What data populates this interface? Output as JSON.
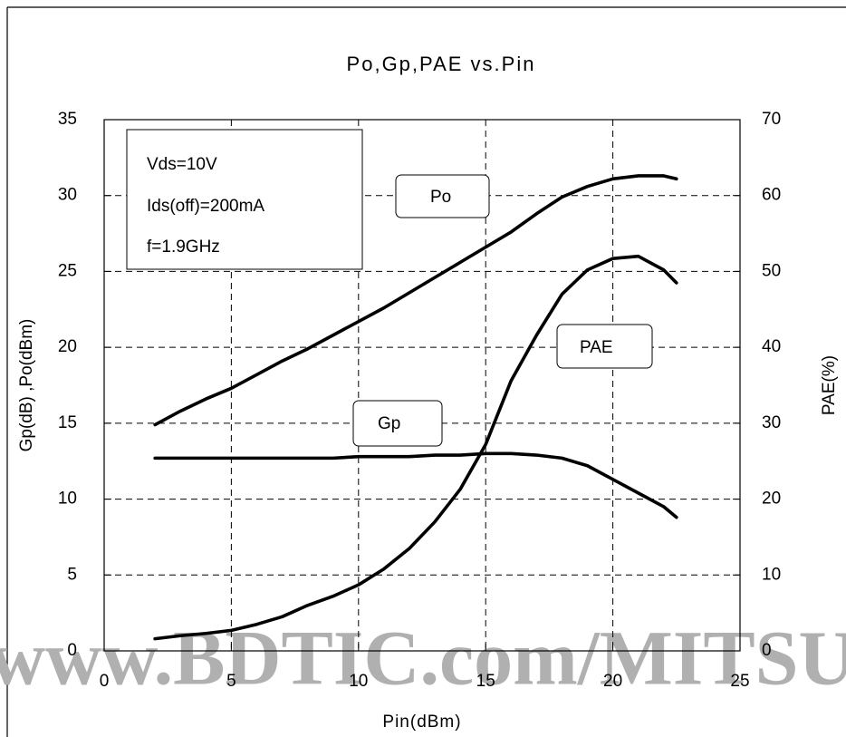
{
  "chart_data": {
    "type": "line",
    "title": "Po,Gp,PAE vs.Pin",
    "xlabel": "Pin(dBm)",
    "ylabel": "Gp(dB) ,Po(dBm)",
    "y2label": "PAE(%)",
    "x": [
      2,
      3,
      4,
      5,
      6,
      7,
      8,
      9,
      10,
      11,
      12,
      13,
      14,
      15,
      16,
      17,
      18,
      19,
      20,
      21,
      22,
      22.5
    ],
    "series": [
      {
        "name": "Po",
        "color": "#000000",
        "values": [
          14.9,
          15.8,
          16.6,
          17.3,
          18.2,
          19.1,
          19.9,
          20.8,
          21.7,
          22.6,
          23.6,
          24.6,
          25.6,
          26.6,
          27.6,
          28.8,
          29.9,
          30.6,
          31.1,
          31.3,
          31.3,
          31.1
        ]
      },
      {
        "name": "Gp",
        "color": "#000000",
        "values": [
          12.7,
          12.7,
          12.7,
          12.7,
          12.7,
          12.7,
          12.7,
          12.7,
          12.8,
          12.8,
          12.8,
          12.9,
          12.9,
          13.0,
          13.0,
          12.9,
          12.7,
          12.2,
          11.3,
          10.4,
          9.5,
          8.8
        ]
      },
      {
        "name": "PAE",
        "color": "#000000",
        "axis": "y2",
        "values": [
          1.6,
          2.0,
          2.3,
          2.7,
          3.5,
          4.5,
          6.0,
          7.2,
          8.7,
          10.8,
          13.5,
          17.0,
          21.3,
          27.2,
          35.6,
          41.6,
          47.0,
          50.2,
          51.7,
          52.0,
          50.2,
          48.5
        ]
      }
    ],
    "xlim": [
      0,
      25
    ],
    "xticks": [
      0,
      5,
      10,
      15,
      20,
      25
    ],
    "ylim": [
      0,
      35
    ],
    "yticks": [
      0,
      5,
      10,
      15,
      20,
      25,
      30,
      35
    ],
    "y2lim": [
      0,
      70
    ],
    "y2ticks": [
      0,
      10,
      20,
      30,
      40,
      50,
      60,
      70
    ],
    "grid": true,
    "annotations": [
      "Vds=10V",
      "Ids(off)=200mA",
      "f=1.9GHz"
    ],
    "watermark": "www.BDTIC.com/MITSUBISHI"
  }
}
